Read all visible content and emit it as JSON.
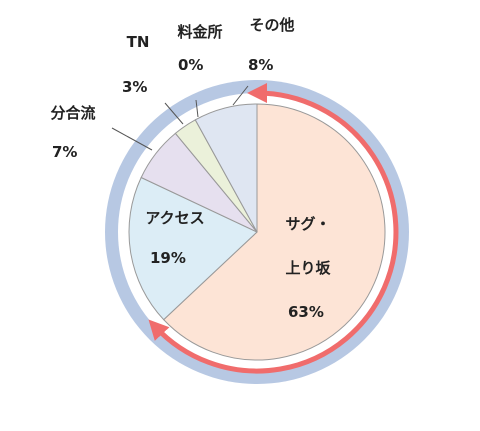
{
  "chart_data": {
    "type": "pie",
    "categories": [
      "サグ・上り坂",
      "アクセス",
      "分合流",
      "TN",
      "料金所",
      "その他"
    ],
    "values": [
      63,
      19,
      7,
      3,
      0,
      8
    ],
    "value_labels": [
      "63%",
      "19%",
      "7%",
      "3%",
      "0%",
      "8%"
    ],
    "colors": [
      "#fde4d6",
      "#dcedf6",
      "#e6e0ef",
      "#ebf1da",
      "#eef3e0",
      "#dfe6f2"
    ]
  }
}
